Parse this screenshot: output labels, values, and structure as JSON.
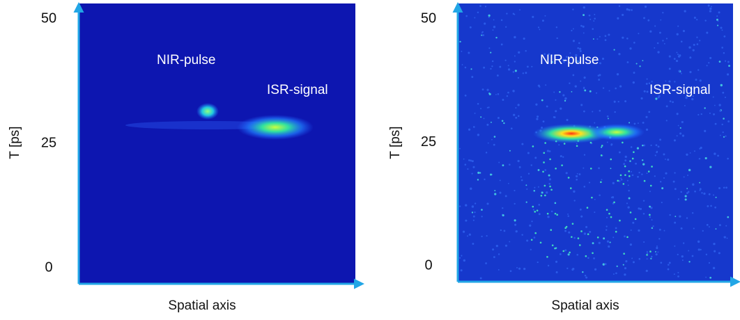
{
  "chart_data": [
    {
      "type": "heatmap-image",
      "x_label": "Spatial axis",
      "y_label": "T [ps]",
      "ylim": [
        0,
        50
      ],
      "yticks": [
        0,
        25,
        50
      ],
      "annotations": [
        "NIR-pulse",
        "ISR-signal"
      ]
    },
    {
      "type": "heatmap-image",
      "x_label": "Spatial axis",
      "y_label": "T [ps]",
      "ylim": [
        0,
        50
      ],
      "yticks": [
        0,
        25,
        50
      ],
      "annotations": [
        "NIR-pulse",
        "ISR-signal"
      ]
    }
  ]
}
